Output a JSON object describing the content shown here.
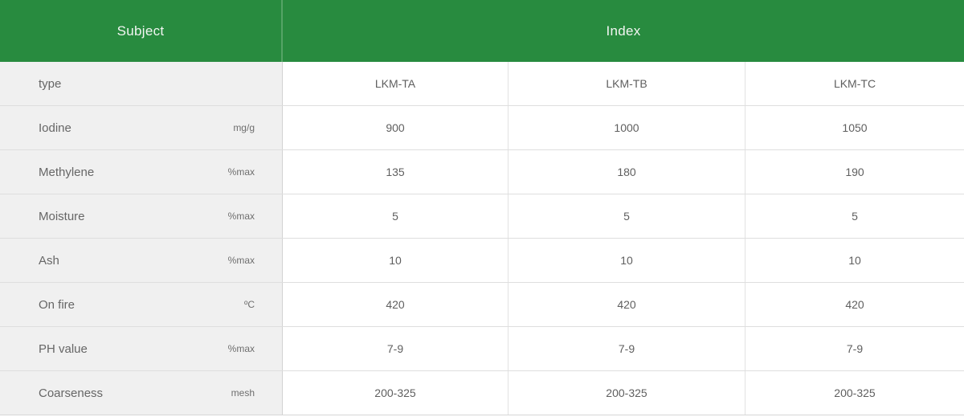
{
  "table": {
    "header": {
      "subject_label": "Subject",
      "index_label": "Index"
    },
    "type_row": {
      "label": "type",
      "values": [
        "LKM-TA",
        "LKM-TB",
        "LKM-TC"
      ]
    },
    "rows": [
      {
        "label": "Iodine",
        "unit": "mg/g",
        "values": [
          "900",
          "1000",
          "1050"
        ]
      },
      {
        "label": "Methylene",
        "unit": "%max",
        "values": [
          "135",
          "180",
          "190"
        ]
      },
      {
        "label": "Moisture",
        "unit": "%max",
        "values": [
          "5",
          "5",
          "5"
        ]
      },
      {
        "label": "Ash",
        "unit": "%max",
        "values": [
          "10",
          "10",
          "10"
        ]
      },
      {
        "label": "On fire",
        "unit": "ºC",
        "values": [
          "420",
          "420",
          "420"
        ]
      },
      {
        "label": "PH value",
        "unit": "%max",
        "values": [
          "7-9",
          "7-9",
          "7-9"
        ]
      },
      {
        "label": "Coarseness",
        "unit": "mesh",
        "values": [
          "200-325",
          "200-325",
          "200-325"
        ]
      }
    ],
    "colors": {
      "header_bg": "#288b3f",
      "header_divider": "#55a466",
      "header_text": "#f2f5f2",
      "subject_col_bg": "#f0f0f0",
      "row_divider": "#dedede",
      "cell_text": "#5f5f5f"
    }
  }
}
